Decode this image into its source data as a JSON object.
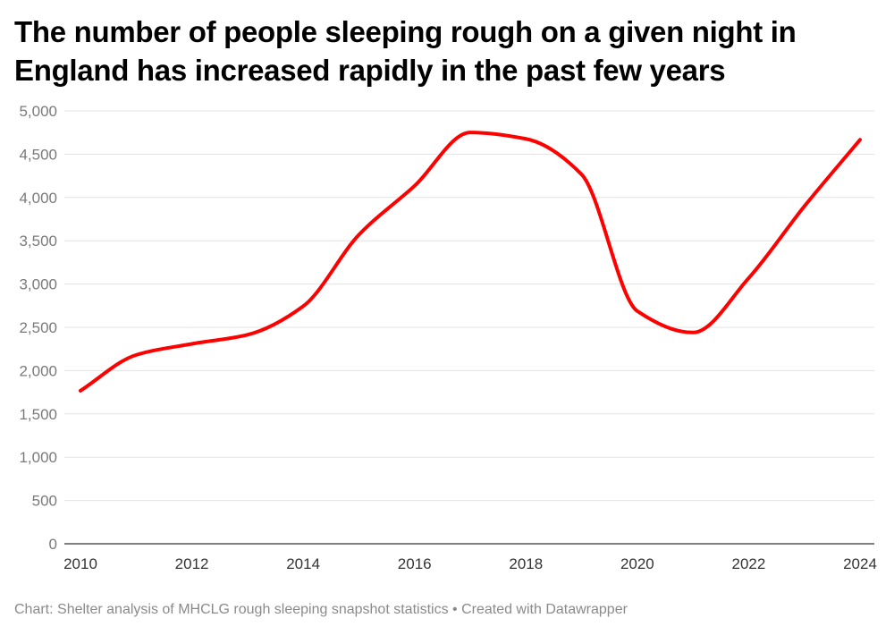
{
  "chart_data": {
    "type": "line",
    "title": "The number of people sleeping rough on a given night in England has increased rapidly in the past few years",
    "xlabel": "",
    "ylabel": "",
    "x": [
      2010,
      2011,
      2012,
      2013,
      2014,
      2015,
      2016,
      2017,
      2018,
      2019,
      2020,
      2021,
      2022,
      2023,
      2024
    ],
    "series": [
      {
        "name": "People sleeping rough",
        "color": "#ff0000",
        "values": [
          1768,
          2181,
          2309,
          2414,
          2744,
          3569,
          4134,
          4751,
          4677,
          4266,
          2688,
          2440,
          3069,
          3898,
          4667
        ]
      }
    ],
    "ylim": [
      0,
      5000
    ],
    "yticks": [
      0,
      500,
      1000,
      1500,
      2000,
      2500,
      3000,
      3500,
      4000,
      4500,
      5000
    ],
    "ytick_labels": [
      "0",
      "500",
      "1,000",
      "1,500",
      "2,000",
      "2,500",
      "3,000",
      "3,500",
      "4,000",
      "4,500",
      "5,000"
    ],
    "xticks": [
      2010,
      2012,
      2014,
      2016,
      2018,
      2020,
      2022,
      2024
    ],
    "xtick_labels": [
      "2010",
      "2012",
      "2014",
      "2016",
      "2018",
      "2020",
      "2022",
      "2024"
    ],
    "grid": true
  },
  "footer": {
    "source": "Chart: Shelter analysis of MHCLG rough sleeping snapshot statistics",
    "separator": " • ",
    "credit": "Created with Datawrapper"
  },
  "colors": {
    "line": "#ff0000",
    "grid": "#e3e3e3",
    "baseline": "#333333",
    "y_tick_text": "#7a7a7a",
    "x_tick_text": "#333333",
    "footer_text": "#8a8a8a"
  }
}
